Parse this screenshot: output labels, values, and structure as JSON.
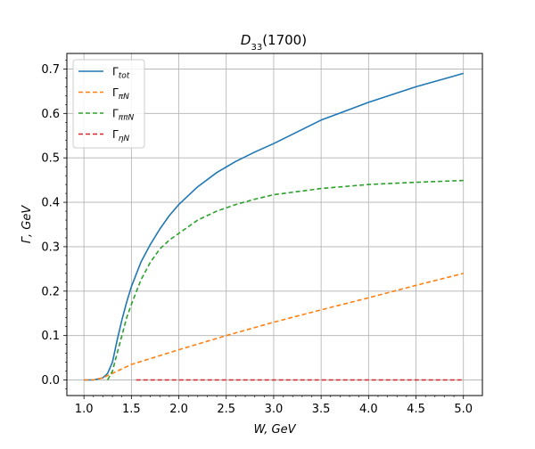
{
  "chart_data": {
    "type": "line",
    "title": "D33(1700)",
    "xlabel": "W, GeV",
    "ylabel": "Γ, GeV",
    "xlim": [
      0.82,
      5.2
    ],
    "ylim": [
      -0.035,
      0.735
    ],
    "xticks": [
      1.0,
      1.5,
      2.0,
      2.5,
      3.0,
      3.5,
      4.0,
      4.5,
      5.0
    ],
    "yticks": [
      0.0,
      0.1,
      0.2,
      0.3,
      0.4,
      0.5,
      0.6,
      0.7
    ],
    "xtick_labels": [
      "1.0",
      "1.5",
      "2.0",
      "2.5",
      "3.0",
      "3.5",
      "4.0",
      "4.5",
      "5.0"
    ],
    "ytick_labels": [
      "0.0",
      "0.1",
      "0.2",
      "0.3",
      "0.4",
      "0.5",
      "0.6",
      "0.7"
    ],
    "grid": true,
    "legend_position": "top-left",
    "series": [
      {
        "name": "Γtot",
        "color": "#1f77b4",
        "dash": "solid",
        "x": [
          1.0,
          1.1,
          1.2,
          1.25,
          1.3,
          1.35,
          1.4,
          1.45,
          1.5,
          1.6,
          1.7,
          1.8,
          1.9,
          2.0,
          2.2,
          2.4,
          2.6,
          2.8,
          3.0,
          3.5,
          4.0,
          4.5,
          5.0
        ],
        "y": [
          0.0,
          0.0,
          0.005,
          0.015,
          0.04,
          0.09,
          0.135,
          0.175,
          0.21,
          0.265,
          0.305,
          0.34,
          0.37,
          0.395,
          0.435,
          0.467,
          0.492,
          0.513,
          0.532,
          0.585,
          0.625,
          0.66,
          0.69
        ]
      },
      {
        "name": "ΓπN",
        "color": "#ff7f0e",
        "dash": "dashed",
        "x": [
          1.0,
          1.1,
          1.2,
          1.3,
          1.5,
          2.0,
          2.5,
          3.0,
          3.5,
          4.0,
          4.5,
          5.0
        ],
        "y": [
          0.0,
          0.0,
          0.005,
          0.015,
          0.035,
          0.068,
          0.1,
          0.13,
          0.158,
          0.185,
          0.213,
          0.24
        ]
      },
      {
        "name": "ΓππN",
        "color": "#2ca02c",
        "dash": "dashed",
        "x": [
          1.25,
          1.3,
          1.35,
          1.4,
          1.45,
          1.5,
          1.6,
          1.7,
          1.8,
          1.9,
          2.0,
          2.2,
          2.4,
          2.6,
          2.8,
          3.0,
          3.5,
          4.0,
          4.5,
          5.0
        ],
        "y": [
          0.0,
          0.02,
          0.06,
          0.1,
          0.14,
          0.17,
          0.225,
          0.265,
          0.295,
          0.315,
          0.33,
          0.36,
          0.38,
          0.395,
          0.407,
          0.417,
          0.431,
          0.44,
          0.445,
          0.449
        ]
      },
      {
        "name": "ΓηN",
        "color": "#d62728",
        "dash": "dashed",
        "x": [
          1.55,
          5.0
        ],
        "y": [
          0.0,
          0.0
        ]
      }
    ]
  }
}
